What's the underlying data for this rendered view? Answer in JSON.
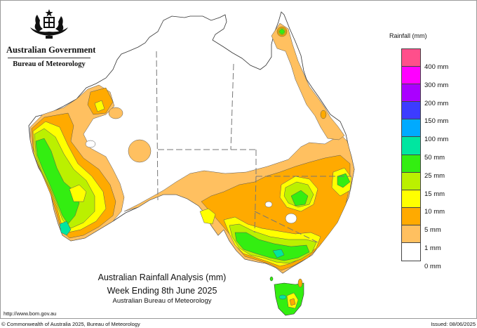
{
  "header": {
    "government": "Australian Government",
    "agency": "Bureau of Meteorology"
  },
  "map": {
    "title": "Australian Rainfall Analysis (mm)",
    "subtitle": "Week Ending 8th June 2025",
    "credit": "Australian Bureau of Meteorology",
    "region": "Australia"
  },
  "legend": {
    "title": "Rainfall (mm)",
    "swatches": [
      {
        "color": "#ff4f8b"
      },
      {
        "color": "#ff00ff"
      },
      {
        "color": "#aa00ff"
      },
      {
        "color": "#3c3cff"
      },
      {
        "color": "#00aaff"
      },
      {
        "color": "#00e6a0"
      },
      {
        "color": "#33ee11"
      },
      {
        "color": "#bbf000"
      },
      {
        "color": "#ffff00"
      },
      {
        "color": "#ffaa00"
      },
      {
        "color": "#ffc060"
      },
      {
        "color": "#ffffff"
      }
    ],
    "labels": [
      "400 mm",
      "300 mm",
      "200 mm",
      "150 mm",
      "100 mm",
      "50 mm",
      "25 mm",
      "15 mm",
      "10 mm",
      "5 mm",
      "1 mm",
      "0 mm"
    ]
  },
  "footer": {
    "url": "http://www.bom.gov.au",
    "copyright": "© Commonwealth of Australia 2025, Bureau of Meteorology",
    "issued": "Issued: 08/06/2025"
  }
}
